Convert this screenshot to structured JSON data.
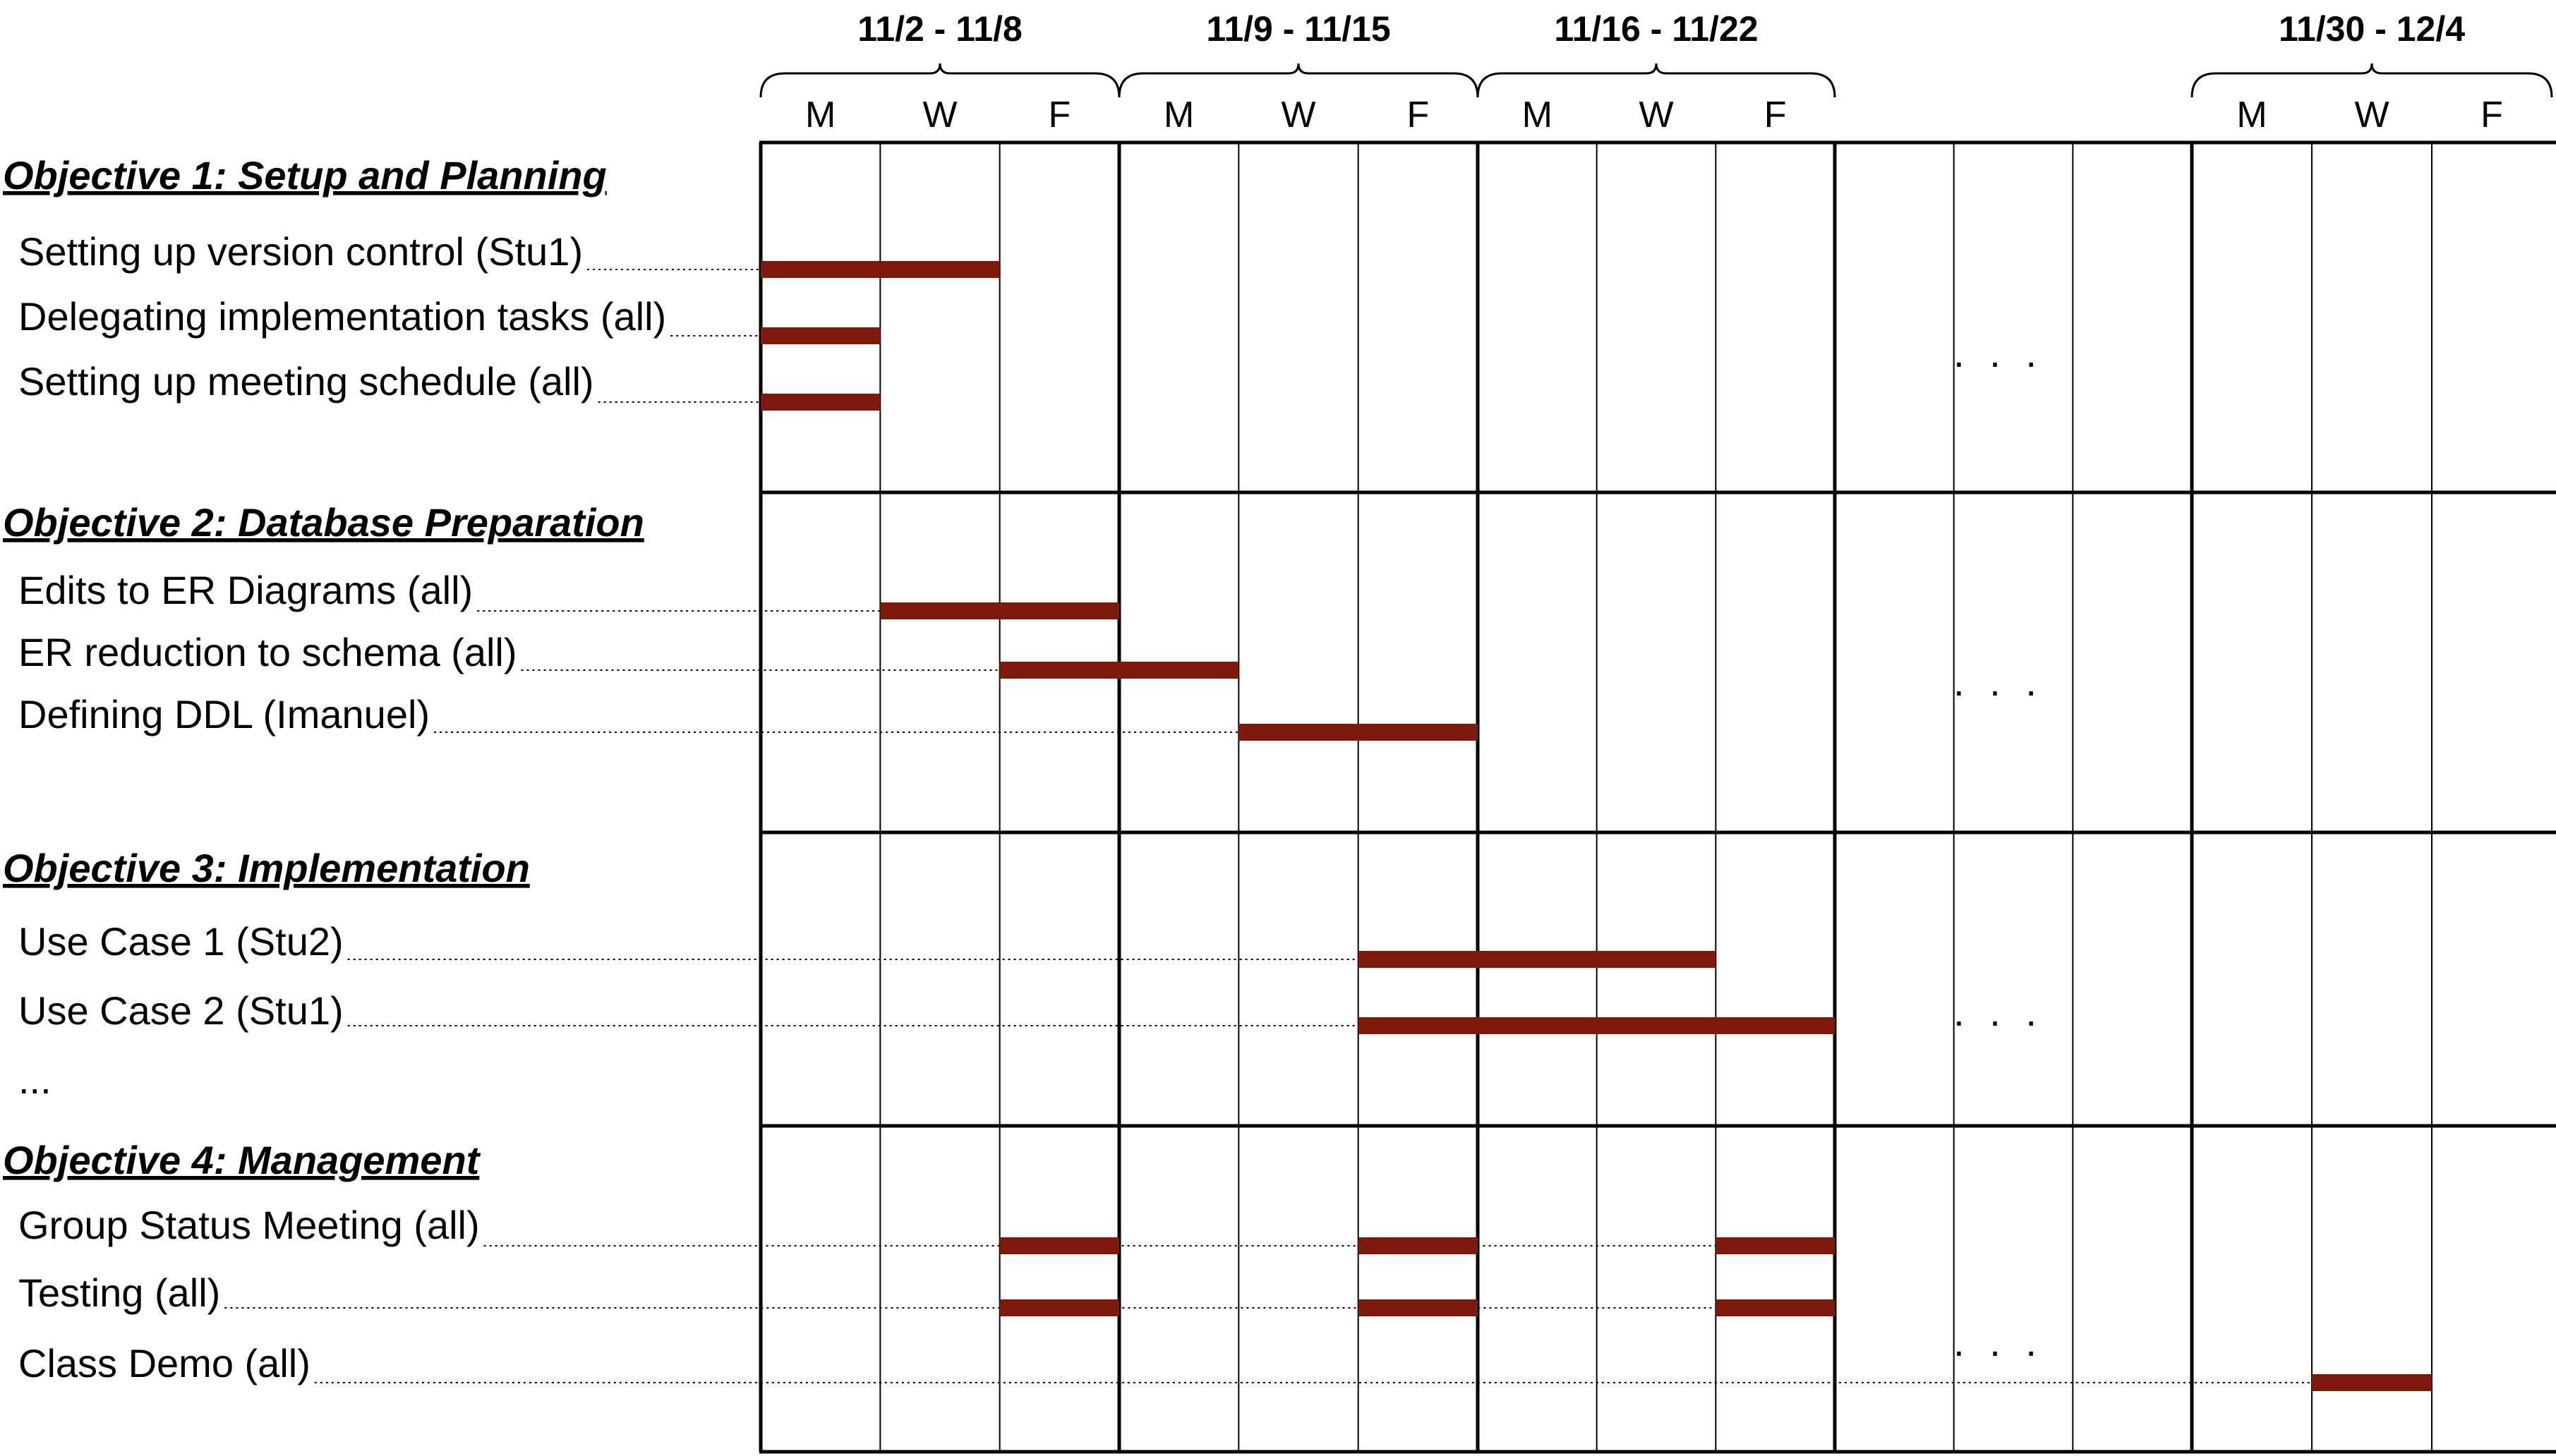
{
  "weeks": [
    {
      "label": "11/2 - 11/8",
      "col": 0
    },
    {
      "label": "11/9 - 11/15",
      "col": 1
    },
    {
      "label": "11/16 - 11/22",
      "col": 2
    },
    {
      "label": "11/30 - 12/4",
      "col": 4
    }
  ],
  "days": [
    "M",
    "W",
    "F"
  ],
  "gap_marker": ". . .",
  "objectives": [
    {
      "title": "Objective 1: Setup and Planning",
      "tasks": [
        {
          "label": "Setting up version control (Stu1)",
          "bars": [
            {
              "week": 0,
              "start": 0,
              "end": 2
            }
          ]
        },
        {
          "label": "Delegating implementation tasks (all)",
          "bars": [
            {
              "week": 0,
              "start": 0,
              "end": 1
            }
          ]
        },
        {
          "label": "Setting up meeting schedule (all)",
          "bars": [
            {
              "week": 0,
              "start": 0,
              "end": 1
            }
          ]
        }
      ]
    },
    {
      "title": "Objective 2: Database Preparation",
      "tasks": [
        {
          "label": "Edits to ER Diagrams (all)",
          "bars": [
            {
              "week": 0,
              "start": 1,
              "end": 3
            }
          ]
        },
        {
          "label": "ER reduction to schema (all)",
          "bars": [
            {
              "week": 0,
              "start": 2,
              "end": 4
            }
          ]
        },
        {
          "label": "Defining DDL (Imanuel)",
          "bars": [
            {
              "week": 1,
              "start": 1,
              "end": 3
            }
          ]
        }
      ]
    },
    {
      "title": "Objective 3: Implementation",
      "tasks": [
        {
          "label": "Use Case 1 (Stu2)",
          "bars": [
            {
              "week": 1,
              "start": 2,
              "end": 5
            }
          ]
        },
        {
          "label": "Use Case 2 (Stu1)",
          "bars": [
            {
              "week": 1,
              "start": 2,
              "end": 6
            }
          ]
        },
        {
          "label": "...",
          "bars": []
        }
      ]
    },
    {
      "title": "Objective 4: Management",
      "tasks": [
        {
          "label": "Group Status Meeting (all)",
          "bars": [
            {
              "week": 0,
              "start": 2,
              "end": 3
            },
            {
              "week": 1,
              "start": 2,
              "end": 3
            },
            {
              "week": 2,
              "start": 2,
              "end": 3
            }
          ]
        },
        {
          "label": "Testing (all)",
          "bars": [
            {
              "week": 0,
              "start": 2,
              "end": 3
            },
            {
              "week": 1,
              "start": 2,
              "end": 3
            },
            {
              "week": 2,
              "start": 2,
              "end": 3
            }
          ]
        },
        {
          "label": "Class Demo (all)",
          "bars": [
            {
              "week": 4,
              "start": 1,
              "end": 2
            }
          ]
        }
      ]
    }
  ],
  "colors": {
    "bar": "#7e1a0c",
    "grid": "#000000"
  }
}
